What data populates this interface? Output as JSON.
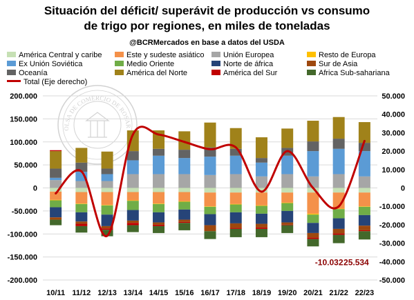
{
  "title_line1": "Situación del déficit/ superávit de producción vs consumo",
  "title_line2": "de trigo por regiones, en miles de toneladas",
  "subtitle": "@BCRMercados en base a datos del USDA",
  "watermark_text": "BOLSA DE COMERCIO DE ROSARIO",
  "colors": {
    "america_central": "#c6e0b4",
    "este_sudeste": "#f4914a",
    "ue": "#a6a6a6",
    "resto_europa": "#ffc000",
    "ex_urss": "#5b9bd5",
    "medio_oriente": "#70ad47",
    "norte_africa": "#264478",
    "sur_asia": "#9e480e",
    "oceania": "#636363",
    "america_norte": "#a0821a",
    "america_sur": "#c00000",
    "africa_subsahariana": "#43682b",
    "total": "#c00000"
  },
  "chart_data": {
    "type": "bar",
    "stacked": true,
    "categories": [
      "10/11",
      "11/12",
      "12/13",
      "13/14",
      "14/15",
      "15/16",
      "16/17",
      "17/18",
      "18/19",
      "19/20",
      "20/21",
      "21/22",
      "22/23"
    ],
    "ylim_left": [
      -200000,
      200000
    ],
    "yticks_left": [
      "-200.000",
      "-150.000",
      "-100.000",
      "-50.000",
      "0",
      "50.000",
      "100.000",
      "150.000",
      "200.000"
    ],
    "ylim_right": [
      -50000,
      50000
    ],
    "yticks_right": [
      "-50.000",
      "-40.000",
      "-30.000",
      "-20.000",
      "-10.000",
      "0",
      "10.000",
      "20.000",
      "30.000",
      "40.000",
      "50.000"
    ],
    "grid": true,
    "legend_position": "top",
    "series": [
      {
        "key": "america_central",
        "name": "América Central y caribe",
        "values": [
          -8000,
          -9000,
          -9000,
          -9000,
          -9000,
          -9000,
          -10000,
          -10000,
          -10000,
          -10000,
          -10000,
          -10000,
          -10000
        ]
      },
      {
        "key": "este_sudeste",
        "name": "Este y sudeste asiático",
        "values": [
          -18000,
          -25000,
          -28000,
          -18000,
          -25000,
          -20000,
          -30000,
          -25000,
          -28000,
          -22000,
          -46000,
          -35000,
          -30000
        ]
      },
      {
        "key": "ue",
        "name": "Unión Europea",
        "values": [
          17000,
          15000,
          15000,
          30000,
          30000,
          30000,
          28000,
          30000,
          25000,
          30000,
          25000,
          30000,
          25000
        ]
      },
      {
        "key": "resto_europa",
        "name": "Resto de Europa",
        "values": [
          -1000,
          -1000,
          -1000,
          -1000,
          -1000,
          -1000,
          -1000,
          -1000,
          -1000,
          -1000,
          -2000,
          -1000,
          -1000
        ]
      },
      {
        "key": "ex_urss",
        "name": "Ex Unión Soviética",
        "values": [
          5000,
          20000,
          15000,
          30000,
          40000,
          35000,
          40000,
          40000,
          30000,
          40000,
          55000,
          55000,
          55000
        ]
      },
      {
        "key": "medio_oriente",
        "name": "Medio Oriente",
        "values": [
          -15000,
          -18000,
          -20000,
          -20000,
          -18000,
          -17000,
          -16000,
          -17000,
          -17000,
          -17000,
          -18000,
          -20000,
          -18000
        ]
      },
      {
        "key": "norte_africa",
        "name": "Norte de áfrica",
        "values": [
          -22000,
          -20000,
          -25000,
          -23000,
          -22000,
          -22000,
          -24000,
          -24000,
          -22000,
          -25000,
          -22000,
          -23000,
          -23000
        ]
      },
      {
        "key": "sur_asia",
        "name": "Sur de Asia",
        "values": [
          -5000,
          -5000,
          -5000,
          -5000,
          -5000,
          -5000,
          -13000,
          -10000,
          -8000,
          -5000,
          -10000,
          -10000,
          -10000
        ]
      },
      {
        "key": "oceania",
        "name": "Oceanía",
        "values": [
          20000,
          20000,
          12000,
          20000,
          15000,
          18000,
          20000,
          15000,
          10000,
          17000,
          21000,
          22000,
          18000
        ]
      },
      {
        "key": "america_norte",
        "name": "América del Norte",
        "values": [
          38000,
          32000,
          37000,
          45000,
          40000,
          40000,
          54000,
          45000,
          45000,
          42000,
          45000,
          47000,
          45000
        ]
      },
      {
        "key": "america_sur",
        "name": "América del Sur",
        "values": [
          2000,
          -5000,
          -3000,
          -5000,
          -3000,
          -2000,
          0,
          -2000,
          -3000,
          -1000,
          -3000,
          -3000,
          -2000
        ]
      },
      {
        "key": "africa_subsahariana",
        "name": "Africa Sub-sahariana",
        "values": [
          -12000,
          -14000,
          -14000,
          -15000,
          -15000,
          -16000,
          -17000,
          -18000,
          -18000,
          -17000,
          -16000,
          -18000,
          -18000
        ]
      }
    ],
    "line": {
      "key": "total",
      "name": "Total (Eje derecho)",
      "axis": "right",
      "values": [
        -3000,
        9000,
        -26000,
        29000,
        29000,
        25000,
        21000,
        22000,
        -2000,
        20000,
        0,
        -10032,
        25534
      ]
    },
    "annotations": [
      {
        "category": "21/22",
        "label": "-10.032"
      },
      {
        "category": "22/23",
        "label": "25.534"
      }
    ]
  }
}
